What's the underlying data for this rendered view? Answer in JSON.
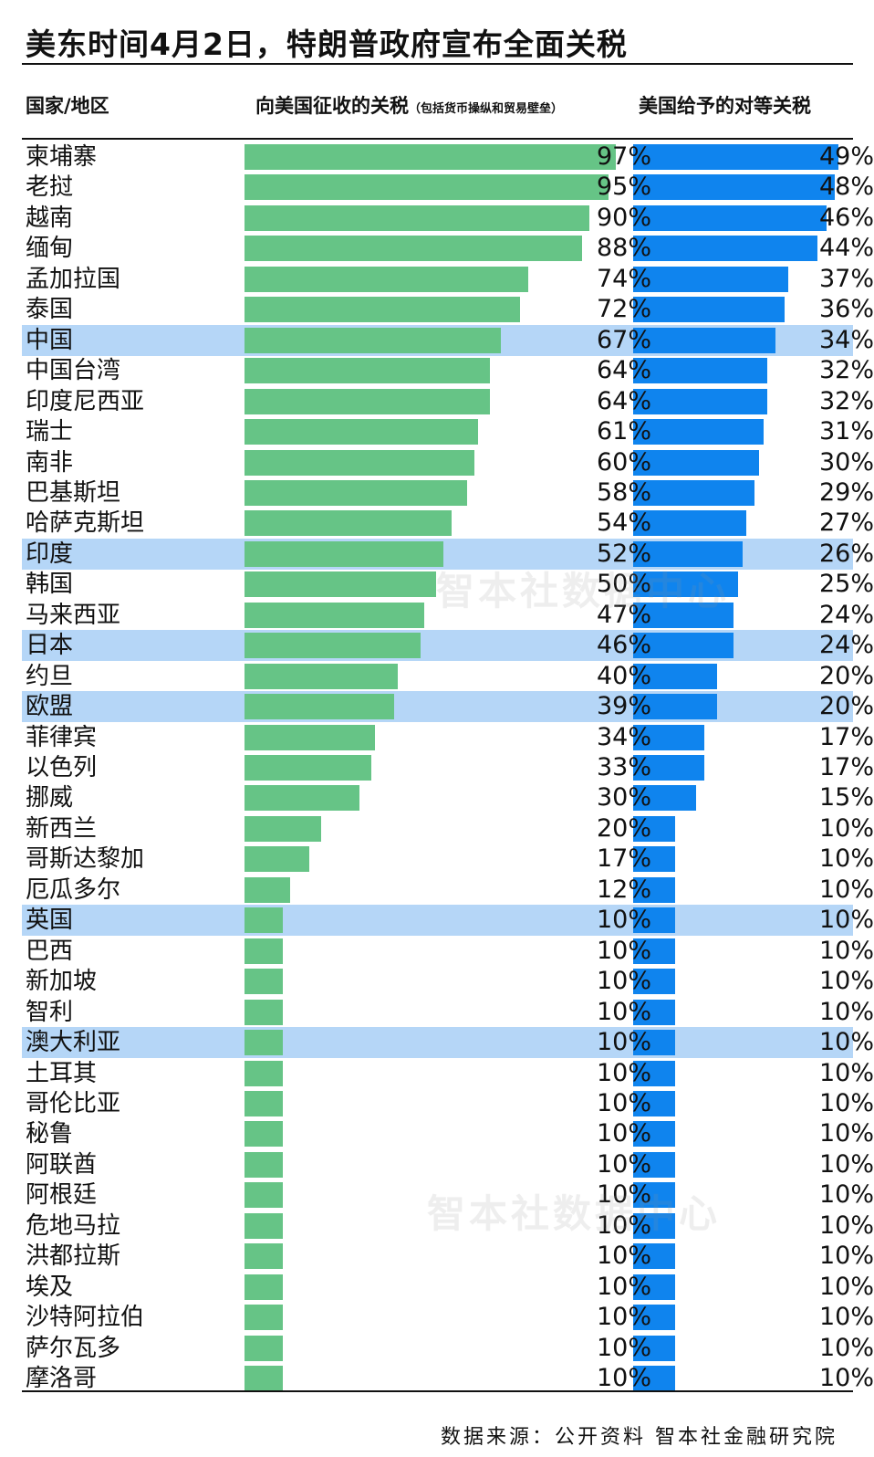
{
  "title": "美东时间4月2日，特朗普政府宣布全面关税",
  "headers": {
    "country": "国家/地区",
    "charged_main": "向美国征收的关税",
    "charged_note": "（包括货币操纵和贸易壁垒）",
    "reciprocal": "美国给予的对等关税"
  },
  "watermark": "智本社数据中心",
  "source": "数据来源：公开资料 智本社金融研究院",
  "colors": {
    "charged_bar": "#66c486",
    "reciprocal_bar": "#0f84ee",
    "highlight_row": "#b5d6f7"
  },
  "chart_data": {
    "type": "bar",
    "orientation": "horizontal",
    "categories": [
      "柬埔寨",
      "老挝",
      "越南",
      "缅甸",
      "孟加拉国",
      "泰国",
      "中国",
      "中国台湾",
      "印度尼西亚",
      "瑞士",
      "南非",
      "巴基斯坦",
      "哈萨克斯坦",
      "印度",
      "韩国",
      "马来西亚",
      "日本",
      "约旦",
      "欧盟",
      "菲律宾",
      "以色列",
      "挪威",
      "新西兰",
      "哥斯达黎加",
      "厄瓜多尔",
      "英国",
      "巴西",
      "新加坡",
      "智利",
      "澳大利亚",
      "土耳其",
      "哥伦比亚",
      "秘鲁",
      "阿联酋",
      "阿根廷",
      "危地马拉",
      "洪都拉斯",
      "埃及",
      "沙特阿拉伯",
      "萨尔瓦多",
      "摩洛哥"
    ],
    "series": [
      {
        "name": "向美国征收的关税",
        "values": [
          97,
          95,
          90,
          88,
          74,
          72,
          67,
          64,
          64,
          61,
          60,
          58,
          54,
          52,
          50,
          47,
          46,
          40,
          39,
          34,
          33,
          30,
          20,
          17,
          12,
          10,
          10,
          10,
          10,
          10,
          10,
          10,
          10,
          10,
          10,
          10,
          10,
          10,
          10,
          10,
          10
        ]
      },
      {
        "name": "美国给予的对等关税",
        "values": [
          49,
          48,
          46,
          44,
          37,
          36,
          34,
          32,
          32,
          31,
          30,
          29,
          27,
          26,
          25,
          24,
          24,
          20,
          20,
          17,
          17,
          15,
          10,
          10,
          10,
          10,
          10,
          10,
          10,
          10,
          10,
          10,
          10,
          10,
          10,
          10,
          10,
          10,
          10,
          10,
          10
        ]
      }
    ],
    "labels_charged": [
      "97%",
      "95%",
      "90%",
      "88%",
      "74%",
      "72%",
      "67%",
      "64%",
      "64%",
      "61%",
      "60%",
      "58%",
      "54%",
      "52%",
      "50%",
      "47%",
      "46%",
      "40%",
      "39%",
      "34%",
      "33%",
      "30%",
      "20%",
      "17%",
      "12%",
      "10%",
      "10%",
      "10%",
      "10%",
      "10%",
      "10%",
      "10%",
      "10%",
      "10%",
      "10%",
      "10%",
      "10%",
      "10%",
      "10%",
      "10%",
      "10%"
    ],
    "labels_reciprocal": [
      "49%",
      "48%",
      "46%",
      "44%",
      "37%",
      "36%",
      "34%",
      "32%",
      "32%",
      "31%",
      "30%",
      "29%",
      "27%",
      "26%",
      "25%",
      "24%",
      "24%",
      "20%",
      "20%",
      "17%",
      "17%",
      "15%",
      "10%",
      "10%",
      "10%",
      "10%",
      "10%",
      "10%",
      "10%",
      "10%",
      "10%",
      "10%",
      "10%",
      "10%",
      "10%",
      "10%",
      "10%",
      "10%",
      "10%",
      "10%",
      "10%"
    ],
    "highlighted": [
      "中国",
      "印度",
      "日本",
      "欧盟",
      "英国",
      "澳大利亚"
    ],
    "unit": "%"
  }
}
